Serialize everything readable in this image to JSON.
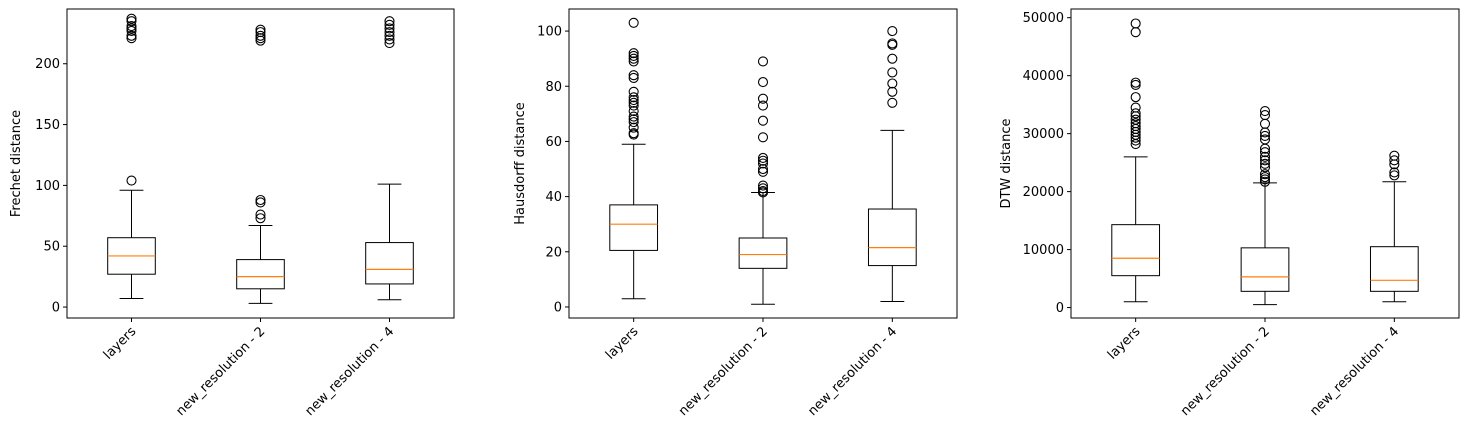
{
  "chart_data": [
    {
      "type": "box",
      "ylabel": "Frechet distance",
      "categories": [
        "layers",
        "new_resolution - 2",
        "new_resolution - 4"
      ],
      "ylim": [
        -9,
        245
      ],
      "yticks": [
        0,
        50,
        100,
        150,
        200
      ],
      "grid": false,
      "boxes": [
        {
          "whisker_low": 7,
          "q1": 27,
          "median": 42,
          "q3": 57,
          "whisker_high": 96,
          "outliers": [
            104,
            221,
            223,
            227,
            229,
            231,
            235,
            237
          ]
        },
        {
          "whisker_low": 3,
          "q1": 15,
          "median": 25,
          "q3": 39,
          "whisker_high": 67,
          "outliers": [
            73,
            76,
            86,
            88,
            219,
            221,
            223,
            226,
            228
          ]
        },
        {
          "whisker_low": 6,
          "q1": 19,
          "median": 31,
          "q3": 53,
          "whisker_high": 101,
          "outliers": [
            217,
            220,
            223,
            226,
            229,
            232,
            235
          ]
        }
      ]
    },
    {
      "type": "box",
      "ylabel": "Hausdorff distance",
      "categories": [
        "layers",
        "new_resolution - 2",
        "new_resolution - 4"
      ],
      "ylim": [
        -4,
        108
      ],
      "yticks": [
        0,
        20,
        40,
        60,
        80,
        100
      ],
      "grid": false,
      "boxes": [
        {
          "whisker_low": 3,
          "q1": 20.5,
          "median": 30,
          "q3": 37,
          "whisker_high": 59,
          "outliers": [
            62.5,
            63,
            65,
            67,
            68,
            69,
            71,
            73,
            74,
            75,
            76,
            78,
            83,
            84,
            89,
            90,
            91,
            92,
            103
          ]
        },
        {
          "whisker_low": 1,
          "q1": 14,
          "median": 19,
          "q3": 25,
          "whisker_high": 41.5,
          "outliers": [
            41.5,
            42,
            43,
            44,
            49,
            50,
            52,
            53,
            54,
            61.5,
            67.5,
            73,
            75.5,
            81.5,
            89
          ]
        },
        {
          "whisker_low": 2,
          "q1": 15,
          "median": 21.5,
          "q3": 35.5,
          "whisker_high": 64,
          "outliers": [
            74,
            78,
            81,
            85,
            90,
            95,
            95.5,
            100
          ]
        }
      ]
    },
    {
      "type": "box",
      "ylabel": "DTW distance",
      "categories": [
        "layers",
        "new_resolution - 2",
        "new_resolution - 4"
      ],
      "ylim": [
        -1800,
        51500
      ],
      "yticks": [
        0,
        10000,
        20000,
        30000,
        40000,
        50000
      ],
      "grid": false,
      "boxes": [
        {
          "whisker_low": 1000,
          "q1": 5500,
          "median": 8500,
          "q3": 14300,
          "whisker_high": 26000,
          "outliers": [
            28200,
            28800,
            29300,
            29800,
            30300,
            30800,
            31300,
            31800,
            32400,
            33000,
            33500,
            34500,
            36300,
            38400,
            38800,
            47500,
            49000
          ]
        },
        {
          "whisker_low": 500,
          "q1": 2800,
          "median": 5300,
          "q3": 10300,
          "whisker_high": 21500,
          "outliers": [
            21700,
            22100,
            22500,
            23000,
            24200,
            24800,
            25400,
            26000,
            26800,
            27400,
            29000,
            29600,
            30200,
            31700,
            33200,
            33900
          ]
        },
        {
          "whisker_low": 1000,
          "q1": 2800,
          "median": 4700,
          "q3": 10500,
          "whisker_high": 21700,
          "outliers": [
            22800,
            23300,
            24700,
            25400,
            26200
          ]
        }
      ]
    }
  ],
  "colors": {
    "median": "#ff7f0e",
    "box": "#000000",
    "background": "#ffffff"
  }
}
